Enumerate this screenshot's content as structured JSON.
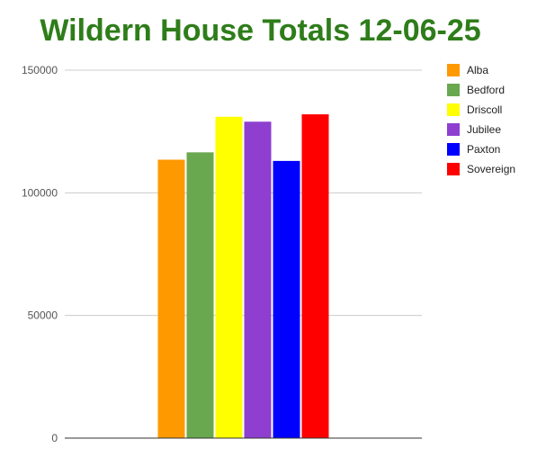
{
  "chart_data": {
    "type": "bar",
    "title": "Wildern House Totals 12-06-25",
    "title_color": "#2e7d1a",
    "xlabel": "",
    "ylabel": "",
    "ylim": [
      0,
      150000
    ],
    "yticks": [
      0,
      50000,
      100000,
      150000
    ],
    "ytick_labels": [
      "0",
      "50000",
      "100000",
      "150000"
    ],
    "grid": true,
    "legend_position": "right",
    "series": [
      {
        "name": "Alba",
        "value": 113500,
        "color": "#ff9900"
      },
      {
        "name": "Bedford",
        "value": 116500,
        "color": "#6aa84f"
      },
      {
        "name": "Driscoll",
        "value": 131000,
        "color": "#ffff00"
      },
      {
        "name": "Jubilee",
        "value": 129000,
        "color": "#8e3fcf"
      },
      {
        "name": "Paxton",
        "value": 113000,
        "color": "#0000ff"
      },
      {
        "name": "Sovereign",
        "value": 132000,
        "color": "#ff0000"
      }
    ]
  }
}
